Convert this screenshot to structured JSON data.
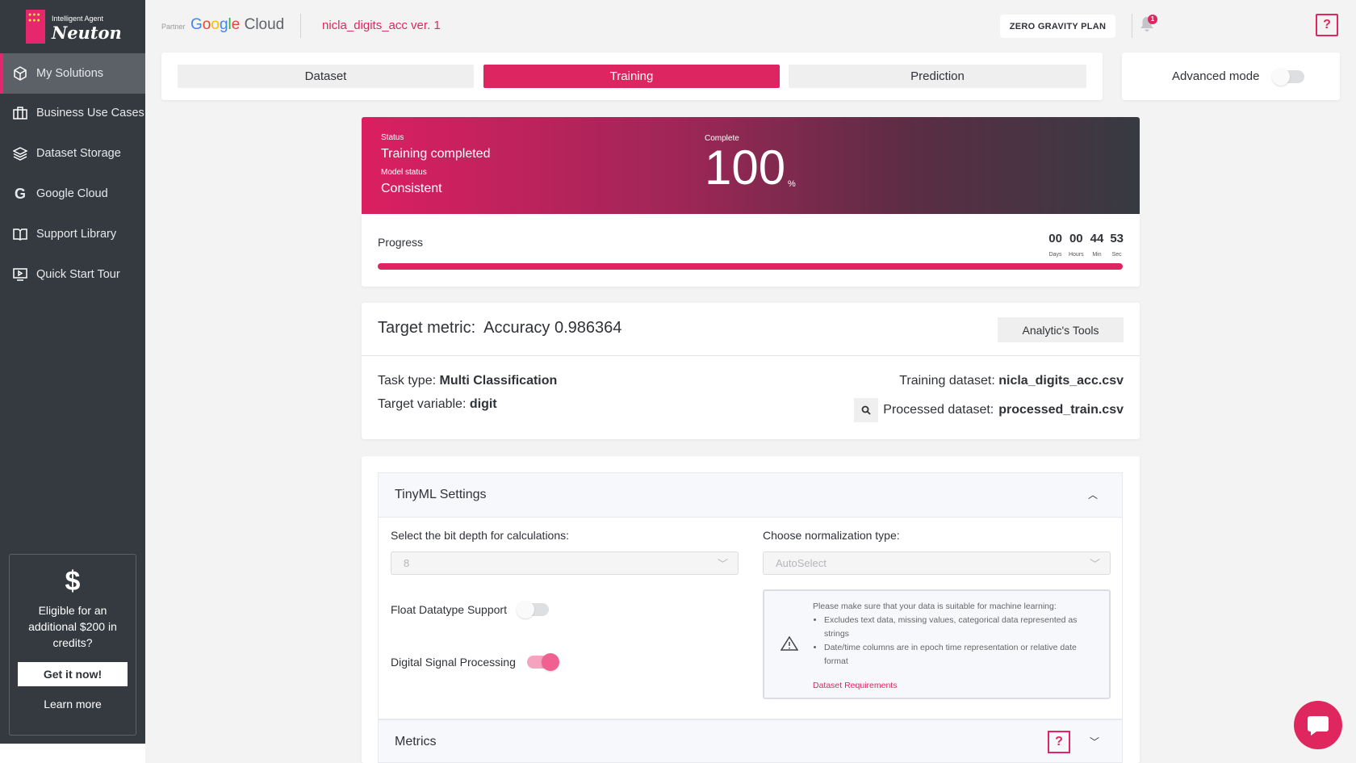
{
  "brand": {
    "tagline": "Intelligent Agent",
    "name": "Neuton"
  },
  "sidebar": {
    "items": [
      {
        "label": "My Solutions",
        "icon": "cube-icon",
        "active": true
      },
      {
        "label": "Business Use Cases",
        "icon": "briefcase-icon"
      },
      {
        "label": "Dataset Storage",
        "icon": "layers-icon"
      },
      {
        "label": "Google Cloud",
        "icon": "google-icon"
      },
      {
        "label": "Support Library",
        "icon": "book-icon"
      },
      {
        "label": "Quick Start Tour",
        "icon": "play-screen-icon"
      }
    ],
    "promo": {
      "symbol": "$",
      "text": "Eligible for an additional $200 in credits?",
      "button": "Get it now!",
      "link": "Learn more"
    }
  },
  "header": {
    "partner": "Partner",
    "partner_brand": "Google Cloud",
    "title": "nicla_digits_acc ver. 1",
    "plan": "ZERO GRAVITY PLAN",
    "notifications": "1",
    "help": "?"
  },
  "tabs": [
    {
      "label": "Dataset"
    },
    {
      "label": "Training",
      "active": true
    },
    {
      "label": "Prediction"
    }
  ],
  "advanced_mode": {
    "label": "Advanced mode",
    "enabled": false
  },
  "status": {
    "status_label": "Status",
    "status": "Training completed",
    "model_label": "Model status",
    "model": "Consistent",
    "complete_label": "Complete",
    "percent": "100",
    "percent_unit": "%"
  },
  "progress": {
    "label": "Progress",
    "value": 100,
    "timer": [
      {
        "v": "00",
        "u": "Days"
      },
      {
        "v": "00",
        "u": "Hours"
      },
      {
        "v": "44",
        "u": "Min"
      },
      {
        "v": "53",
        "u": "Sec"
      }
    ]
  },
  "metric": {
    "label": "Target metric:",
    "value": "Accuracy 0.986364",
    "tools": "Analytic's Tools",
    "task_label": "Task type:",
    "task": "Multi Classification",
    "target_label": "Target variable:",
    "target": "digit",
    "train_label": "Training dataset:",
    "train": "nicla_digits_acc.csv",
    "proc_label": "Processed dataset:",
    "proc": "processed_train.csv"
  },
  "tinyml": {
    "title": "TinyML Settings",
    "bit_label": "Select the bit depth for calculations:",
    "bit_value": "8",
    "norm_label": "Choose normalization type:",
    "norm_value": "AutoSelect",
    "float_label": "Float Datatype Support",
    "float_on": false,
    "dsp_label": "Digital Signal Processing",
    "dsp_on": true,
    "info": {
      "intro": "Please make sure that your data is suitable for machine learning:",
      "items": [
        "Excludes text data, missing values, categorical data represented as strings",
        "Date/time columns are in epoch time representation or relative date format"
      ],
      "link": "Dataset Requirements"
    }
  },
  "metrics": {
    "title": "Metrics",
    "help": "?"
  },
  "colors": {
    "accent": "#dc2561",
    "sidebar": "#353a41"
  }
}
